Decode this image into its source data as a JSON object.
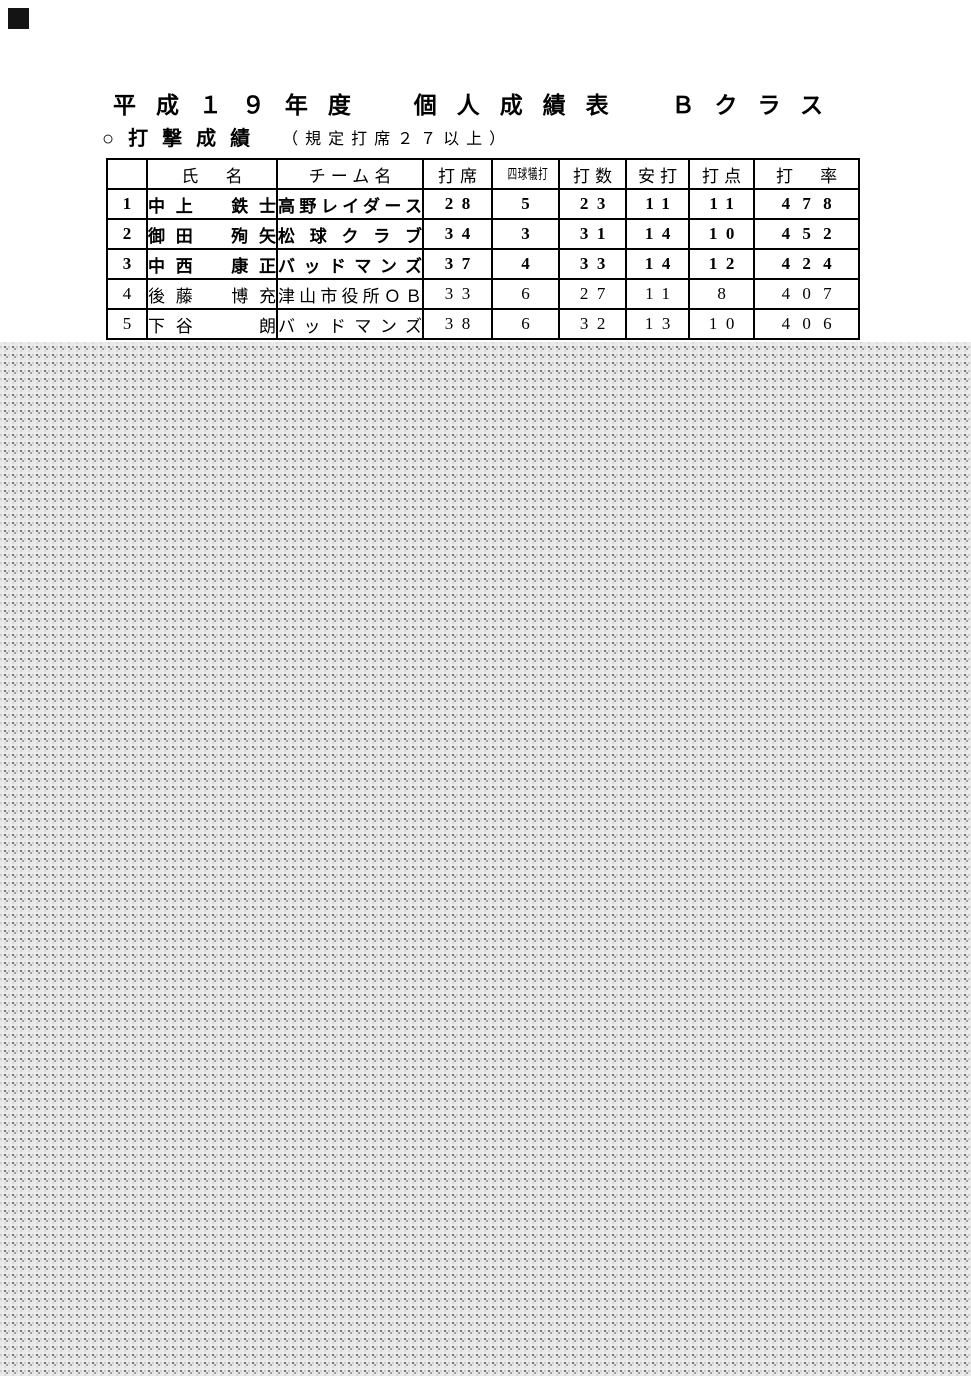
{
  "page": {
    "title": "平成１９年度　個人成績表　Ｂクラス",
    "subtitle": "○打撃成績",
    "subtitle_note": "（規定打席２７以上）"
  },
  "table": {
    "headers": [
      "",
      "氏　名",
      "チーム名",
      "打席",
      "四球犠打",
      "打数",
      "安打",
      "打点",
      "打　率"
    ],
    "rows": [
      {
        "rank": "1",
        "name": "中上　鉄士",
        "team": "高野レイダース",
        "pa": "28",
        "walks_sac": "5",
        "at_bats": "23",
        "hits": "11",
        "rbi": "11",
        "avg": "478"
      },
      {
        "rank": "2",
        "name": "御田　殉矢",
        "team": "松球クラブ",
        "pa": "34",
        "walks_sac": "3",
        "at_bats": "31",
        "hits": "14",
        "rbi": "10",
        "avg": "452"
      },
      {
        "rank": "3",
        "name": "中西　康正",
        "team": "バッドマンズ",
        "pa": "37",
        "walks_sac": "4",
        "at_bats": "33",
        "hits": "14",
        "rbi": "12",
        "avg": "424"
      },
      {
        "rank": "4",
        "name": "後藤　博充",
        "team": "津山市役所ＯＢ",
        "pa": "33",
        "walks_sac": "6",
        "at_bats": "27",
        "hits": "11",
        "rbi": "8",
        "avg": "407"
      },
      {
        "rank": "5",
        "name": "下谷　　朗",
        "team": "バッドマンズ",
        "pa": "38",
        "walks_sac": "6",
        "at_bats": "32",
        "hits": "13",
        "rbi": "10",
        "avg": "406"
      }
    ]
  },
  "colors": {
    "text": "#000000",
    "border": "#000000",
    "page_bg": "#ffffff",
    "overlay_bg": "#ebebeb",
    "overlay_dot": "#6e6e6e",
    "corner_mark": "#141414"
  }
}
